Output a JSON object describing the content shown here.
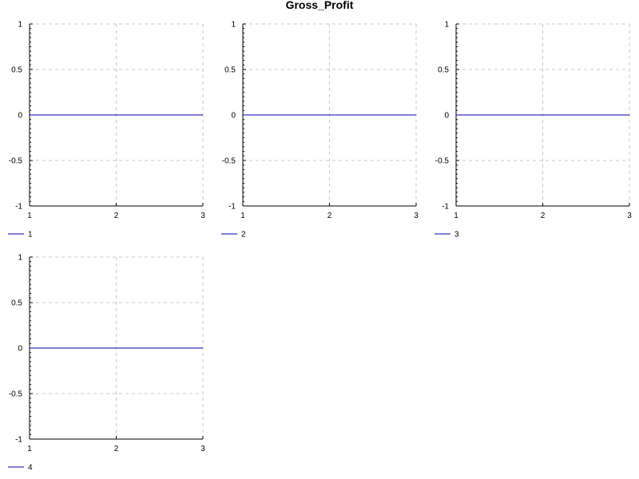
{
  "title": "Gross_Profit",
  "colors": {
    "line": "#0000aa",
    "grid": "#c8c8c8",
    "axis": "#000000"
  },
  "chart_data": [
    {
      "type": "line",
      "x": [
        1,
        2,
        3
      ],
      "xlim": [
        1,
        3
      ],
      "ylim": [
        -1,
        1
      ],
      "xticks": [
        "1",
        "2",
        "3"
      ],
      "yticks": [
        "-1",
        "-0.5",
        "0",
        "0.5",
        "1"
      ],
      "grid": true,
      "legend": "below",
      "series": [
        {
          "name": "1",
          "values": [
            0,
            0,
            0
          ]
        }
      ]
    },
    {
      "type": "line",
      "x": [
        1,
        2,
        3
      ],
      "xlim": [
        1,
        3
      ],
      "ylim": [
        -1,
        1
      ],
      "xticks": [
        "1",
        "2",
        "3"
      ],
      "yticks": [
        "-1",
        "-0.5",
        "0",
        "0.5",
        "1"
      ],
      "grid": true,
      "legend": "below",
      "series": [
        {
          "name": "2",
          "values": [
            0,
            0,
            0
          ]
        }
      ]
    },
    {
      "type": "line",
      "x": [
        1,
        2,
        3
      ],
      "xlim": [
        1,
        3
      ],
      "ylim": [
        -1,
        1
      ],
      "xticks": [
        "1",
        "2",
        "3"
      ],
      "yticks": [
        "-1",
        "-0.5",
        "0",
        "0.5",
        "1"
      ],
      "grid": true,
      "legend": "below",
      "series": [
        {
          "name": "3",
          "values": [
            0,
            0,
            0
          ]
        }
      ]
    },
    {
      "type": "line",
      "x": [
        1,
        2,
        3
      ],
      "xlim": [
        1,
        3
      ],
      "ylim": [
        -1,
        1
      ],
      "xticks": [
        "1",
        "2",
        "3"
      ],
      "yticks": [
        "-1",
        "-0.5",
        "0",
        "0.5",
        "1"
      ],
      "grid": true,
      "legend": "below",
      "series": [
        {
          "name": "4",
          "values": [
            0,
            0,
            0
          ]
        }
      ]
    }
  ]
}
